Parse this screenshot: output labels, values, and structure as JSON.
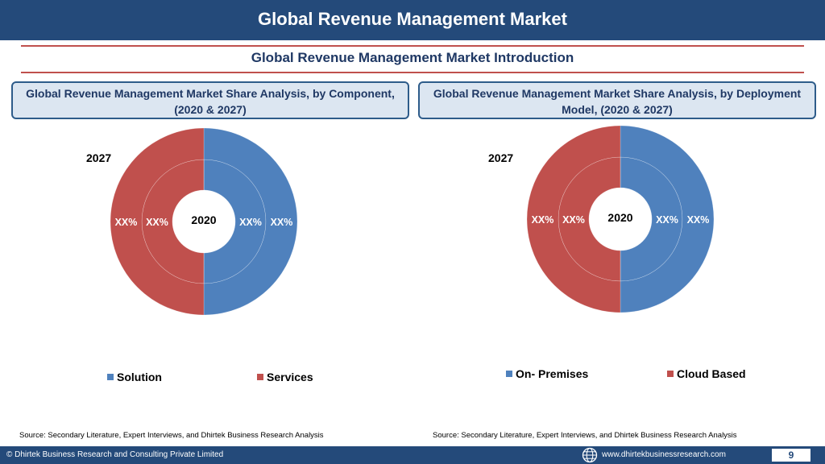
{
  "header": {
    "title": "Global Revenue Management Market"
  },
  "subtitle": "Global Revenue Management Market  Introduction",
  "panels": [
    {
      "heading": "Global Revenue Management Market  Share Analysis, by Component, (2020 & 2027)"
    },
    {
      "heading": "Global Revenue Management Market  Share Analysis, by Deployment Model, (2020 & 2027)"
    }
  ],
  "colors": {
    "blue": "#4f81bd",
    "red": "#c0504d",
    "navy": "#244a7a"
  },
  "chart_data": [
    {
      "type": "pie",
      "subtype": "doughnut",
      "rings": [
        {
          "name": "2020",
          "labels": [
            "XX%",
            "XX%"
          ]
        },
        {
          "name": "2027",
          "labels": [
            "XX%",
            "XX%"
          ]
        }
      ],
      "categories": [
        "Solution",
        "Services"
      ],
      "values": [
        50,
        50
      ],
      "colors": [
        "#4f81bd",
        "#c0504d"
      ],
      "legend": "bottom",
      "year_inner": "2020",
      "year_outer": "2027"
    },
    {
      "type": "pie",
      "subtype": "doughnut",
      "rings": [
        {
          "name": "2020",
          "labels": [
            "XX%",
            "XX%"
          ]
        },
        {
          "name": "2027",
          "labels": [
            "XX%",
            "XX%"
          ]
        }
      ],
      "categories": [
        "On- Premises",
        "Cloud Based"
      ],
      "values": [
        50,
        50
      ],
      "colors": [
        "#4f81bd",
        "#c0504d"
      ],
      "legend": "bottom",
      "year_inner": "2020",
      "year_outer": "2027"
    }
  ],
  "sources": [
    "Source: Secondary Literature, Expert Interviews, and Dhirtek Business Research Analysis",
    "Source: Secondary Literature, Expert Interviews, and Dhirtek Business Research Analysis"
  ],
  "footer": {
    "copyright": "© Dhirtek Business Research and Consulting Private Limited",
    "website": "www.dhirtekbusinessresearch.com",
    "page": "9",
    "globe_icon": "globe-icon"
  }
}
